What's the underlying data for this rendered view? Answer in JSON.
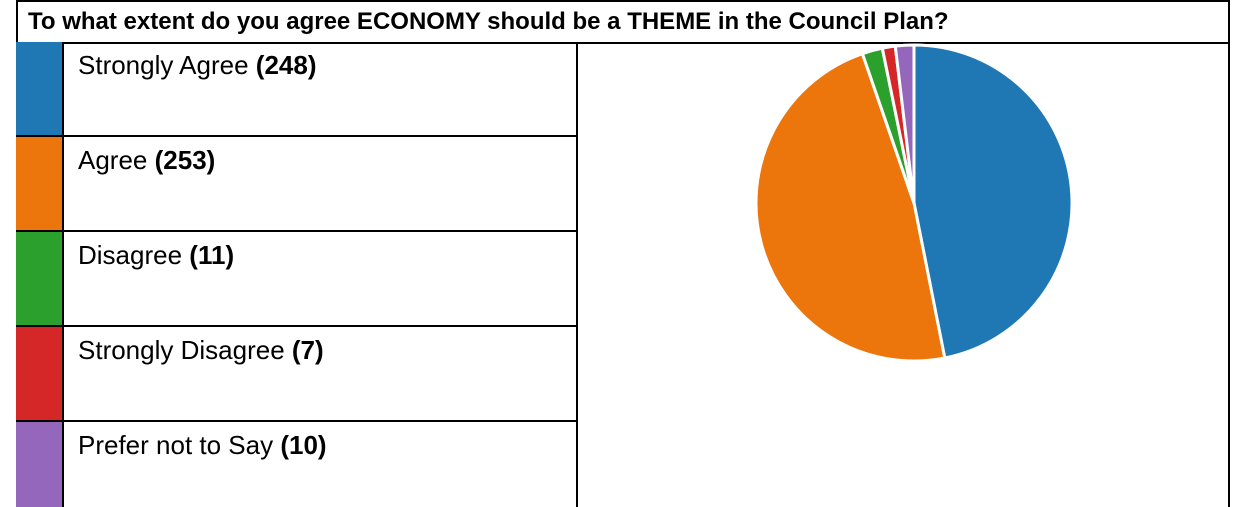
{
  "question": "To what extent do you agree ECONOMY should be a THEME in the Council Plan?",
  "chart_data": {
    "type": "pie",
    "title": "",
    "slices": [
      {
        "name": "Strongly Agree",
        "value": 248,
        "count_text": "(248)",
        "color": "#1f77b4"
      },
      {
        "name": "Agree",
        "value": 253,
        "count_text": "(253)",
        "color": "#ec760c"
      },
      {
        "name": "Disagree",
        "value": 11,
        "count_text": "(11)",
        "color": "#2ca02c"
      },
      {
        "name": "Strongly Disagree",
        "value": 7,
        "count_text": "(7)",
        "color": "#d62728"
      },
      {
        "name": "Prefer not to Say",
        "value": 10,
        "count_text": "(10)",
        "color": "#9467bd"
      }
    ]
  }
}
